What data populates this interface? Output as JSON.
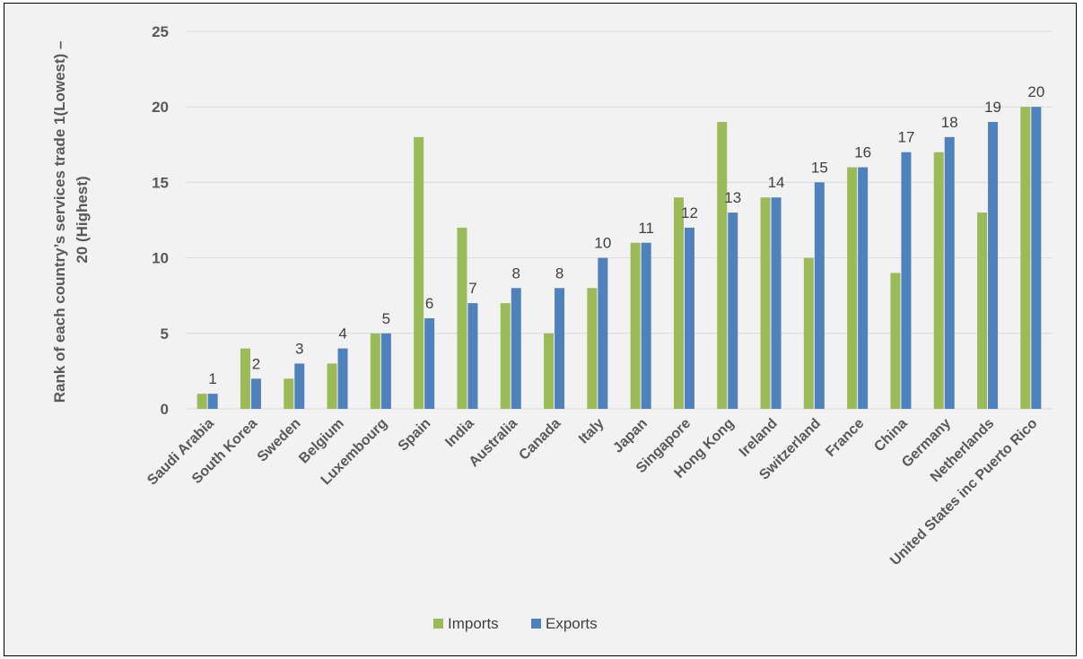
{
  "chart_data": {
    "type": "bar",
    "categories": [
      "Saudi Arabia",
      "South Korea",
      "Sweden",
      "Belgium",
      "Luxembourg",
      "Spain",
      "India",
      "Australia",
      "Canada",
      "Italy",
      "Japan",
      "Singapore",
      "Hong Kong",
      "Ireland",
      "Switzerland",
      "France",
      "China",
      "Germany",
      "Netherlands",
      "United States inc Puerto Rico"
    ],
    "series": [
      {
        "name": "Imports",
        "color": "#9bbb59",
        "values": [
          1,
          4,
          2,
          3,
          5,
          18,
          12,
          7,
          5,
          8,
          11,
          14,
          19,
          14,
          10,
          16,
          9,
          17,
          13,
          20
        ]
      },
      {
        "name": "Exports",
        "color": "#4f81bd",
        "values": [
          1,
          2,
          3,
          4,
          5,
          6,
          7,
          8,
          8,
          10,
          11,
          12,
          13,
          14,
          15,
          16,
          17,
          18,
          19,
          20
        ]
      }
    ],
    "data_labels_series": "Exports",
    "ylabel_lines": [
      "Rank  of each country’s services trade 1(Lowest) –",
      "20 (Highest)"
    ],
    "xlabel": "",
    "ylim": [
      0,
      25
    ],
    "yticks": [
      0,
      5,
      10,
      15,
      20,
      25
    ],
    "grid": true,
    "legend": "bottom",
    "gridline_color": "#d9d9d9",
    "background_color": "#f2f2f2"
  }
}
